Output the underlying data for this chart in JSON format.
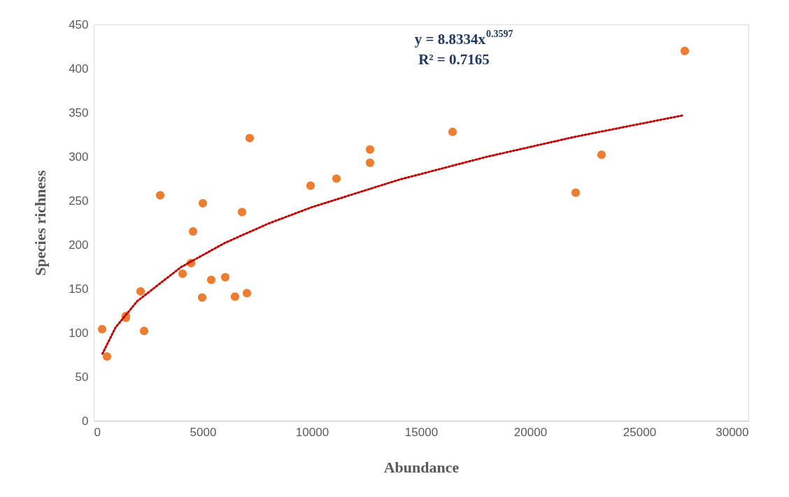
{
  "chart_data": {
    "type": "scatter",
    "xlabel": "Abundance",
    "ylabel": "Species richness",
    "xlim": [
      0,
      30000
    ],
    "xticks": [
      0,
      5000,
      10000,
      15000,
      20000,
      25000,
      30000
    ],
    "ylim": [
      0,
      450
    ],
    "yticks": [
      0,
      50,
      100,
      150,
      200,
      250,
      300,
      350,
      400,
      450
    ],
    "grid": false,
    "series": [
      {
        "color": "#ed7d31",
        "marker": "circle",
        "x": [
          385,
          609,
          1474,
          1474,
          2147,
          2308,
          3045,
          4071,
          4455,
          4551,
          4968,
          5000,
          5385,
          6026,
          6474,
          6795,
          7019,
          7147,
          9936,
          11122,
          12660,
          12660,
          16442,
          22083,
          23269,
          27083
        ],
        "values": [
          104,
          73,
          119,
          117,
          147,
          102,
          256,
          167,
          179,
          215,
          140,
          247,
          160,
          163,
          141,
          237,
          145,
          321,
          267,
          275,
          308,
          293,
          328,
          259,
          302,
          420
        ]
      },
      {
        "type": "line",
        "color": "#c00000",
        "marker": "none",
        "line_style": "dotted",
        "x": [
          400,
          1000,
          2000,
          4000,
          6000,
          8000,
          10000,
          14000,
          18000,
          22000,
          27000
        ],
        "values": [
          76.2,
          106.0,
          136.0,
          174.5,
          201.9,
          223.9,
          242.6,
          273.8,
          299.7,
          322.2,
          346.8
        ]
      }
    ],
    "annotations": [
      "y = 8.8334x$^{0.3597}$",
      "R² = 0.7165"
    ]
  }
}
